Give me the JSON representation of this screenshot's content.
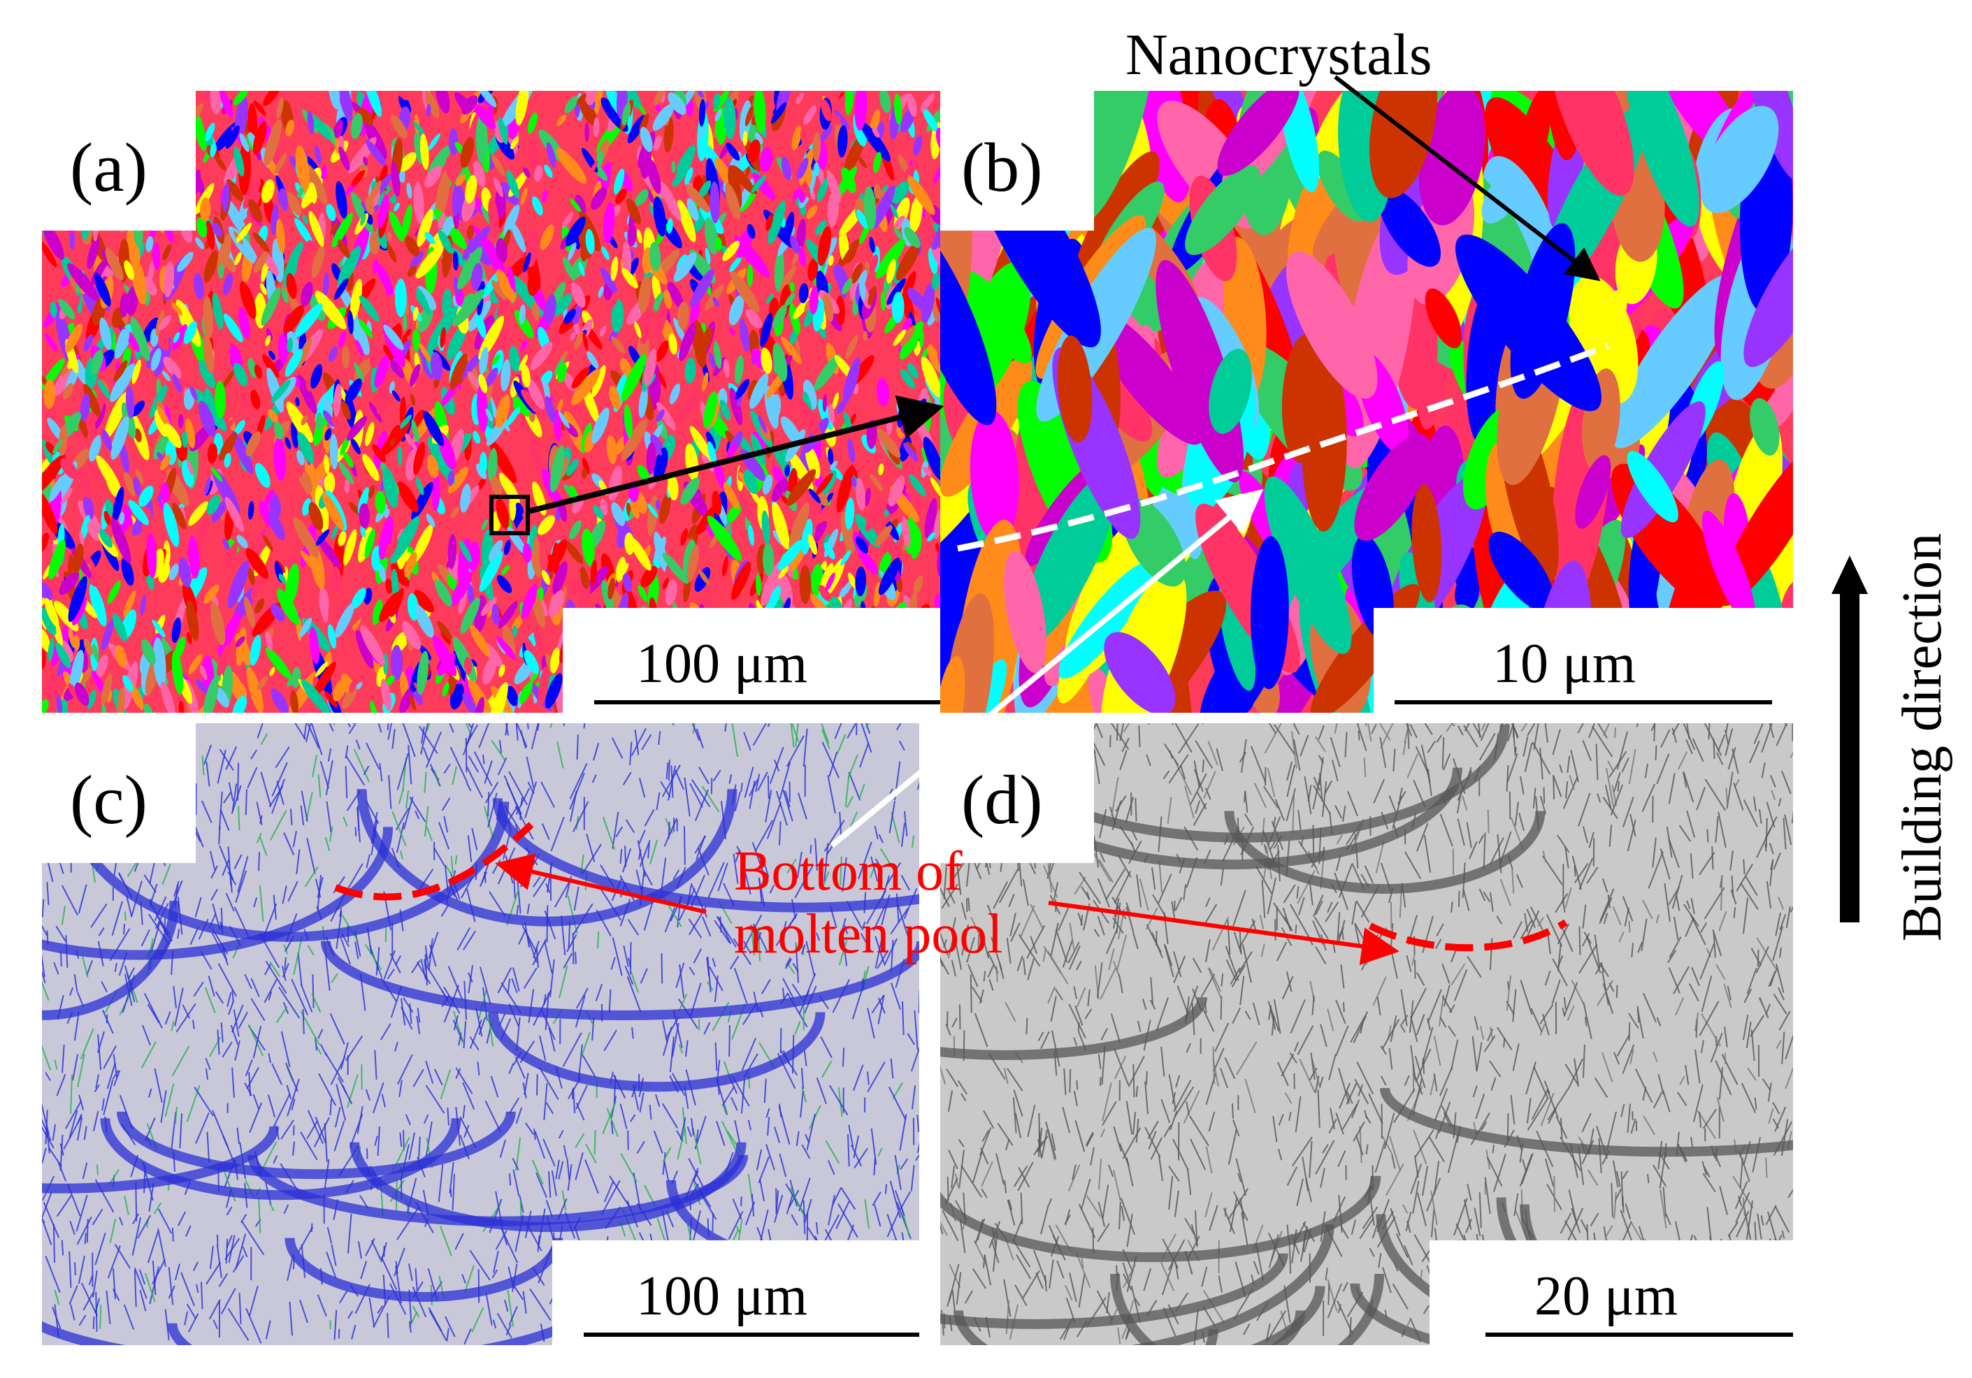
{
  "figure": {
    "panels": [
      {
        "id": "a",
        "label": "(a)",
        "scale_bar": "100 μm",
        "content": "EBSD orientation map"
      },
      {
        "id": "b",
        "label": "(b)",
        "scale_bar": "10 μm",
        "content": "EBSD orientation map, magnified"
      },
      {
        "id": "c",
        "label": "(c)",
        "scale_bar": "100 μm",
        "content": "Grain boundary map"
      },
      {
        "id": "d",
        "label": "(d)",
        "scale_bar": "20 μm",
        "content": "Optical micrograph"
      }
    ],
    "annotations": {
      "nanocrystals": "Nanocrystals",
      "molten_pool_line1": "Bottom of",
      "molten_pool_line2": "molten pool",
      "building_direction": "Building direction"
    },
    "colors": {
      "annotation_red": "#ff0000",
      "gb_blue": "#2b2fd6",
      "gb_green": "#22b14c",
      "arrow_black": "#000000",
      "arrow_white": "#ffffff"
    }
  }
}
